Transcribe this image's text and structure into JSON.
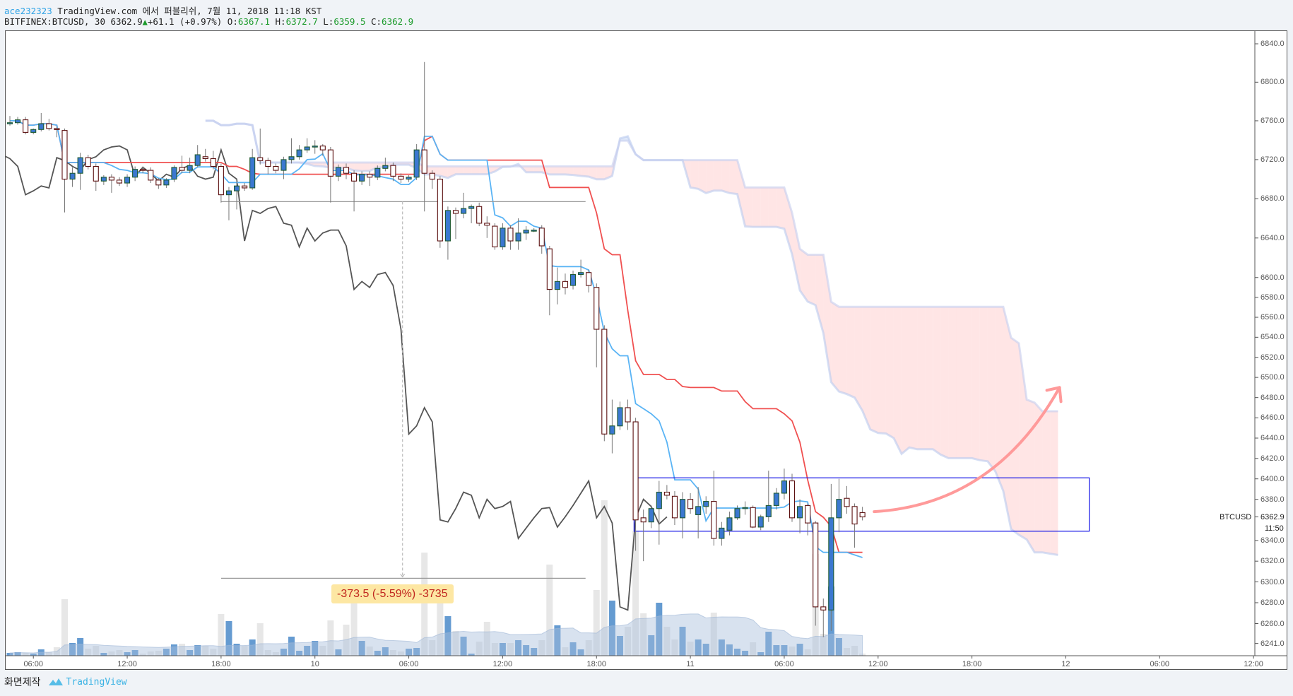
{
  "header": {
    "user": "ace232323",
    "published": " TradingView.com 에서 퍼블리쉬, 7월 11, 2018 11:18 KST",
    "symbol": "BITFINEX:BTCUSD, 30 6362.9",
    "change": "+61.1 (+0.97%)",
    "o_label": " O:",
    "o_value": "6367.1",
    "h_label": " H:",
    "h_value": "6372.7",
    "l_label": " L:",
    "l_value": "6359.5",
    "c_label": " C:",
    "c_value": "6362.9",
    "up_icon": "triangle-up-icon"
  },
  "price_axis": {
    "labels": [
      "6840.0",
      "6800.0",
      "6760.0",
      "6720.0",
      "6680.0",
      "6640.0",
      "6600.0",
      "6580.0",
      "6560.0",
      "6540.0",
      "6520.0",
      "6500.0",
      "6480.0",
      "6460.0",
      "6440.0",
      "6420.0",
      "6400.0",
      "6380.0",
      "6340.0",
      "6320.0",
      "6300.0",
      "6280.0",
      "6260.0",
      "6241.0"
    ],
    "symbol_label": "BTCUSD",
    "last_price": "6362.9",
    "countdown": "11:50"
  },
  "time_axis": {
    "labels": [
      "06:00",
      "12:00",
      "18:00",
      "10",
      "06:00",
      "12:00",
      "18:00",
      "11",
      "06:00",
      "12:00",
      "18:00",
      "12",
      "06:00",
      "12:00"
    ]
  },
  "measure": {
    "change": "-373.5 (-5.59%)",
    "ticks": "-3735"
  },
  "footer": {
    "label": "화면제작",
    "brand": "TradingView"
  },
  "colors": {
    "up_body": "#3b78d0",
    "up_border": "#1e5a32",
    "down_body": "#ffffff",
    "down_border": "#5c1010",
    "conversion_line": "#5ab4f5",
    "base_line": "#f05050",
    "lagging_span": "#555555",
    "cloud_bull": "#c9d9f5",
    "cloud_bear": "#ffd0d0",
    "volume_up": "#4a8ac9",
    "volume_down": "#cfcfcf",
    "rectangle": "#1414e6",
    "arrow": "#ff9a9a"
  },
  "chart_data": {
    "type": "candlestick",
    "symbol": "BITFINEX:BTCUSD",
    "interval": "30",
    "price_scale": "log",
    "ylim": [
      6241,
      6860
    ],
    "indicators": [
      "ichimoku",
      "volume",
      "volume-ma"
    ],
    "candles_ohlc": [
      [
        6757,
        6765,
        6755,
        6758
      ],
      [
        6758,
        6764,
        6756,
        6761
      ],
      [
        6761,
        6764,
        6746,
        6748
      ],
      [
        6748,
        6752,
        6746,
        6751
      ],
      [
        6751,
        6768,
        6749,
        6757
      ],
      [
        6757,
        6762,
        6750,
        6752
      ],
      [
        6752,
        6754,
        6743,
        6751
      ],
      [
        6750,
        6752,
        6666,
        6700
      ],
      [
        6700,
        6712,
        6692,
        6706
      ],
      [
        6706,
        6727,
        6689,
        6722
      ],
      [
        6722,
        6725,
        6710,
        6713
      ],
      [
        6713,
        6716,
        6688,
        6698
      ],
      [
        6698,
        6704,
        6694,
        6702
      ],
      [
        6702,
        6705,
        6686,
        6699
      ],
      [
        6699,
        6702,
        6693,
        6696
      ],
      [
        6696,
        6705,
        6692,
        6702
      ],
      [
        6702,
        6713,
        6698,
        6710
      ],
      [
        6710,
        6713,
        6706,
        6709
      ],
      [
        6709,
        6712,
        6696,
        6699
      ],
      [
        6699,
        6701,
        6690,
        6694
      ],
      [
        6694,
        6701,
        6691,
        6699
      ],
      [
        6700,
        6714,
        6697,
        6712
      ],
      [
        6712,
        6724,
        6706,
        6709
      ],
      [
        6709,
        6722,
        6706,
        6714
      ],
      [
        6714,
        6735,
        6712,
        6725
      ],
      [
        6723,
        6731,
        6718,
        6721
      ],
      [
        6721,
        6729,
        6710,
        6713
      ],
      [
        6713,
        6716,
        6676,
        6684
      ],
      [
        6684,
        6692,
        6658,
        6688
      ],
      [
        6688,
        6700,
        6669,
        6693
      ],
      [
        6693,
        6696,
        6688,
        6691
      ],
      [
        6691,
        6731,
        6689,
        6722
      ],
      [
        6722,
        6752,
        6715,
        6719
      ],
      [
        6719,
        6722,
        6705,
        6713
      ],
      [
        6713,
        6716,
        6706,
        6709
      ],
      [
        6709,
        6723,
        6700,
        6720
      ],
      [
        6720,
        6742,
        6716,
        6723
      ],
      [
        6723,
        6735,
        6720,
        6730
      ],
      [
        6730,
        6742,
        6727,
        6733
      ],
      [
        6734,
        6740,
        6726,
        6734
      ],
      [
        6734,
        6736,
        6724,
        6730
      ],
      [
        6730,
        6733,
        6676,
        6703
      ],
      [
        6703,
        6715,
        6698,
        6712
      ],
      [
        6712,
        6716,
        6700,
        6706
      ],
      [
        6706,
        6709,
        6667,
        6698
      ],
      [
        6698,
        6708,
        6694,
        6705
      ],
      [
        6705,
        6708,
        6693,
        6702
      ],
      [
        6702,
        6714,
        6699,
        6711
      ],
      [
        6711,
        6722,
        6708,
        6714
      ],
      [
        6714,
        6717,
        6698,
        6703
      ],
      [
        6703,
        6706,
        6696,
        6700
      ],
      [
        6700,
        6704,
        6697,
        6702
      ],
      [
        6702,
        6736,
        6699,
        6730
      ],
      [
        6730,
        6821,
        6667,
        6706
      ],
      [
        6706,
        6709,
        6690,
        6700
      ],
      [
        6700,
        6703,
        6630,
        6637
      ],
      [
        6637,
        6672,
        6618,
        6668
      ],
      [
        6668,
        6671,
        6639,
        6665
      ],
      [
        6665,
        6686,
        6660,
        6670
      ],
      [
        6670,
        6674,
        6655,
        6672
      ],
      [
        6672,
        6676,
        6652,
        6655
      ],
      [
        6655,
        6662,
        6640,
        6653
      ],
      [
        6652,
        6655,
        6628,
        6631
      ],
      [
        6631,
        6655,
        6628,
        6650
      ],
      [
        6650,
        6653,
        6628,
        6637
      ],
      [
        6637,
        6660,
        6628,
        6645
      ],
      [
        6645,
        6652,
        6638,
        6648
      ],
      [
        6648,
        6650,
        6646,
        6648
      ],
      [
        6650,
        6653,
        6624,
        6632
      ],
      [
        6629,
        6632,
        6562,
        6588
      ],
      [
        6588,
        6610,
        6573,
        6596
      ],
      [
        6596,
        6604,
        6583,
        6590
      ],
      [
        6592,
        6607,
        6588,
        6603
      ],
      [
        6603,
        6618,
        6600,
        6605
      ],
      [
        6605,
        6608,
        6585,
        6592
      ],
      [
        6590,
        6594,
        6510,
        6548
      ],
      [
        6548,
        6552,
        6437,
        6444
      ],
      [
        6444,
        6478,
        6425,
        6452
      ],
      [
        6452,
        6476,
        6448,
        6470
      ],
      [
        6470,
        6478,
        6448,
        6456
      ],
      [
        6456,
        6460,
        6330,
        6360
      ],
      [
        6362,
        6370,
        6320,
        6358
      ],
      [
        6358,
        6374,
        6352,
        6371
      ],
      [
        6371,
        6398,
        6336,
        6387
      ],
      [
        6387,
        6394,
        6380,
        6384
      ],
      [
        6383,
        6388,
        6355,
        6362
      ],
      [
        6362,
        6387,
        6342,
        6380
      ],
      [
        6380,
        6386,
        6366,
        6371
      ],
      [
        6365,
        6392,
        6342,
        6373
      ],
      [
        6373,
        6383,
        6366,
        6378
      ],
      [
        6378,
        6408,
        6335,
        6342
      ],
      [
        6342,
        6358,
        6335,
        6352
      ],
      [
        6350,
        6368,
        6345,
        6362
      ],
      [
        6362,
        6374,
        6360,
        6371
      ],
      [
        6372,
        6378,
        6365,
        6372
      ],
      [
        6372,
        6374,
        6352,
        6353
      ],
      [
        6353,
        6365,
        6350,
        6363
      ],
      [
        6363,
        6408,
        6358,
        6374
      ],
      [
        6374,
        6391,
        6370,
        6386
      ],
      [
        6386,
        6410,
        6380,
        6398
      ],
      [
        6398,
        6405,
        6358,
        6362
      ],
      [
        6362,
        6380,
        6347,
        6373
      ],
      [
        6374,
        6376,
        6345,
        6357
      ],
      [
        6357,
        6359,
        6258,
        6276
      ],
      [
        6276,
        6284,
        6247,
        6273
      ],
      [
        6273,
        6395,
        6253,
        6362
      ],
      [
        6362,
        6400,
        6348,
        6380
      ],
      [
        6381,
        6393,
        6366,
        6373
      ],
      [
        6373,
        6376,
        6333,
        6356
      ],
      [
        6367.1,
        6372.7,
        6359.5,
        6362.9
      ]
    ],
    "volume": [
      4,
      5,
      4,
      3,
      9,
      5,
      12,
      80,
      18,
      25,
      10,
      14,
      4,
      6,
      8,
      5,
      8,
      3,
      6,
      7,
      10,
      16,
      17,
      8,
      15,
      14,
      10,
      59,
      49,
      17,
      14,
      23,
      46,
      8,
      5,
      10,
      27,
      7,
      14,
      21,
      14,
      50,
      9,
      44,
      76,
      21,
      13,
      7,
      12,
      8,
      6,
      10,
      11,
      146,
      22,
      101,
      56,
      35,
      27,
      3,
      20,
      48,
      18,
      18,
      18,
      22,
      15,
      11,
      22,
      129,
      43,
      12,
      19,
      9,
      22,
      93,
      220,
      78,
      28,
      41,
      177,
      60,
      29,
      75,
      41,
      23,
      41,
      20,
      23,
      17,
      61,
      23,
      16,
      10,
      7,
      19,
      5,
      34,
      15,
      15,
      13,
      17,
      9,
      144,
      31,
      98,
      25,
      11,
      14,
      3
    ],
    "drawings": {
      "range_top_price": 6677,
      "range_bottom_price": 6303.5,
      "box_top_price": 6401,
      "box_bottom_price": 6349,
      "arrow_start_price": 6368,
      "arrow_end_price": 6490
    }
  }
}
